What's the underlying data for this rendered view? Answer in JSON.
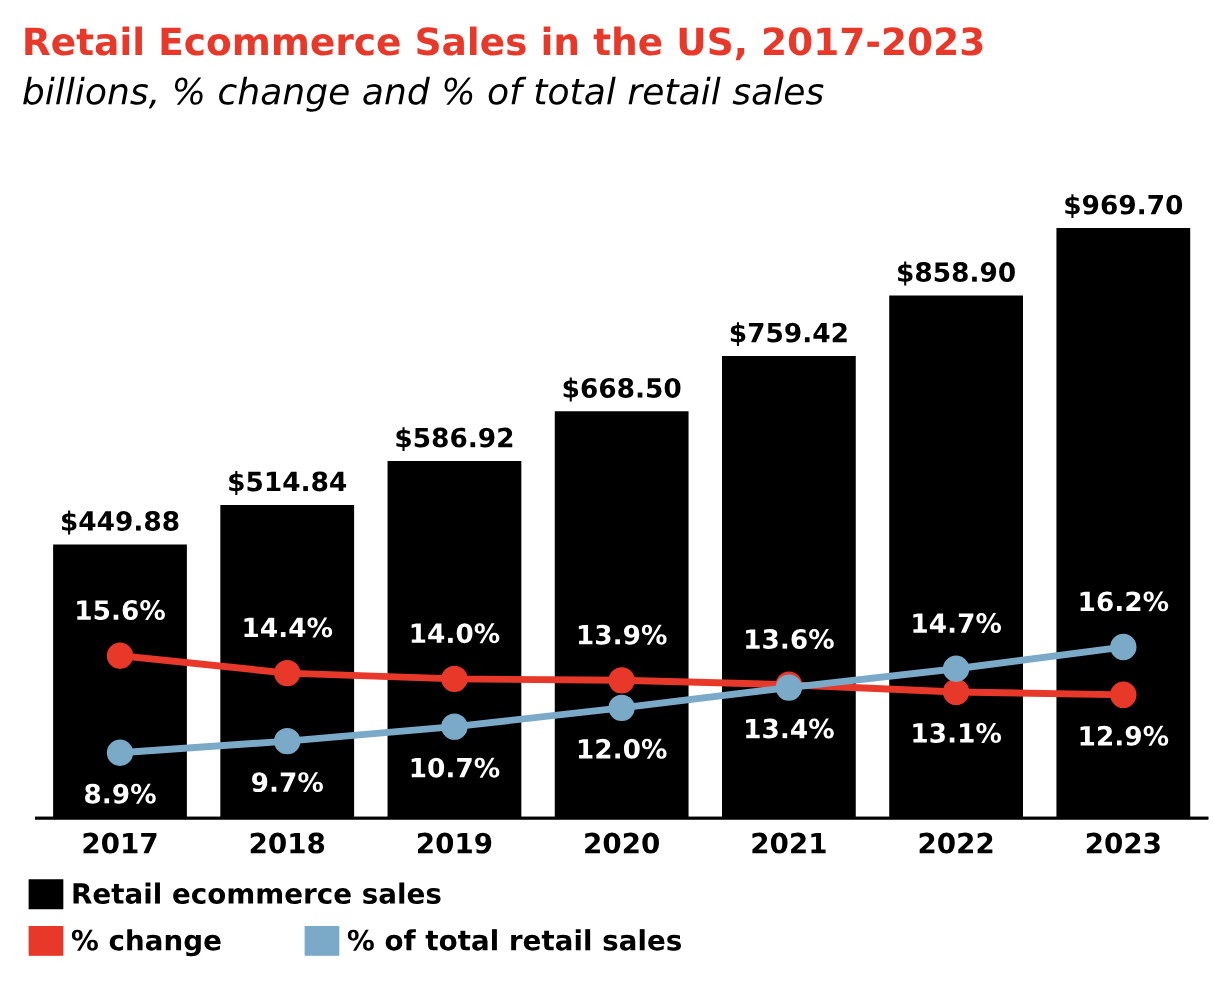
{
  "chart_data": {
    "type": "bar",
    "title": "Retail Ecommerce Sales in the US, 2017-2023",
    "subtitle": "billions, % change and % of total retail sales",
    "categories": [
      "2017",
      "2018",
      "2019",
      "2020",
      "2021",
      "2022",
      "2023"
    ],
    "series": [
      {
        "name": "Retail ecommerce sales",
        "color": "#000000",
        "values": [
          449.88,
          514.84,
          586.92,
          668.5,
          759.42,
          858.9,
          969.7
        ],
        "value_labels": [
          "$449.88",
          "$514.84",
          "$586.92",
          "$668.50",
          "$759.42",
          "$858.90",
          "$969.70"
        ]
      },
      {
        "name": "% change",
        "type": "line",
        "axis": "y2",
        "color": "#e8382a",
        "values": [
          15.6,
          14.4,
          14.0,
          13.9,
          13.6,
          13.1,
          12.9
        ],
        "value_labels": [
          "15.6%",
          "14.4%",
          "14.0%",
          "13.9%",
          "13.6%",
          "13.1%",
          "12.9%"
        ]
      },
      {
        "name": "% of total retail sales",
        "type": "line",
        "axis": "y2",
        "color": "#7aaac8",
        "values": [
          8.9,
          9.7,
          10.7,
          12.0,
          13.4,
          14.7,
          16.2
        ],
        "value_labels": [
          "8.9%",
          "9.7%",
          "10.7%",
          "12.0%",
          "13.4%",
          "14.7%",
          "16.2%"
        ]
      }
    ],
    "tick_labels": "x",
    "marker": "circle",
    "line_style": "solid",
    "grid": false,
    "legend": "bottom"
  }
}
